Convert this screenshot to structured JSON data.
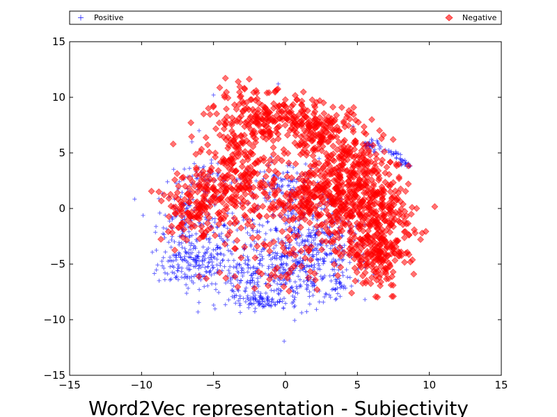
{
  "chart_data": {
    "type": "scatter",
    "title": "Word2Vec representation - Subjectivity",
    "xlabel": "",
    "ylabel": "",
    "xlim": [
      -15,
      15
    ],
    "ylim": [
      -15,
      15
    ],
    "x_ticks": [
      -15,
      -10,
      -5,
      0,
      5,
      10,
      15
    ],
    "y_ticks": [
      -15,
      -10,
      -5,
      0,
      5,
      10,
      15
    ],
    "x_tick_labels": [
      "−15",
      "−10",
      "−5",
      "0",
      "5",
      "10",
      "15"
    ],
    "y_tick_labels": [
      "−15",
      "−10",
      "−5",
      "0",
      "5",
      "10",
      "15"
    ],
    "grid": false,
    "legend": {
      "placement": "top",
      "layout": "horizontal-expanded"
    },
    "series": [
      {
        "name": "Positive",
        "marker": "plus",
        "color": "#0000ff",
        "alpha": 0.6,
        "clusters": [
          {
            "cx": -6.5,
            "cy": -5.0,
            "sx": 1.2,
            "sy": 1.0,
            "n": 160
          },
          {
            "cx": -7.0,
            "cy": -1.0,
            "sx": 1.0,
            "sy": 1.6,
            "n": 110
          },
          {
            "cx": -5.5,
            "cy": 2.5,
            "sx": 1.3,
            "sy": 0.8,
            "n": 60
          },
          {
            "cx": -2.0,
            "cy": -6.0,
            "sx": 1.8,
            "sy": 1.3,
            "n": 170
          },
          {
            "cx": 1.0,
            "cy": -5.5,
            "sx": 1.9,
            "sy": 1.6,
            "n": 230
          },
          {
            "cx": 1.5,
            "cy": -2.0,
            "sx": 1.7,
            "sy": 1.4,
            "n": 160
          },
          {
            "cx": 0.0,
            "cy": 2.0,
            "sx": 1.4,
            "sy": 1.2,
            "n": 120
          },
          {
            "cx": -1.5,
            "cy": -8.5,
            "sx": 1.2,
            "sy": 0.3,
            "n": 70
          },
          {
            "cx": 3.0,
            "cy": -4.0,
            "sx": 1.2,
            "sy": 1.8,
            "n": 80
          },
          {
            "cx": 3.5,
            "cy": -7.0,
            "sx": 0.2,
            "sy": 0.5,
            "n": 15
          },
          {
            "cx": -4.0,
            "cy": -2.5,
            "sx": 1.5,
            "sy": 1.5,
            "n": 80
          }
        ],
        "arc": {
          "x0": 5.5,
          "y0": 5.7,
          "x1": 8.8,
          "y1": 3.5,
          "n": 70,
          "jitter": 0.2
        },
        "outliers": [
          [
            -5.0,
            10.2
          ],
          [
            -0.5,
            11.2
          ],
          [
            -6.0,
            7.0
          ],
          [
            -6.5,
            6.0
          ],
          [
            4.7,
            7.4
          ],
          [
            -8.2,
            2.4
          ],
          [
            -1.0,
            -8.8
          ],
          [
            3.8,
            -7.9
          ]
        ]
      },
      {
        "name": "Negative",
        "marker": "diamond",
        "color": "#ff0000",
        "alpha": 0.55,
        "clusters": [
          {
            "cx": -1.5,
            "cy": 8.0,
            "sx": 1.8,
            "sy": 1.3,
            "n": 220
          },
          {
            "cx": 2.5,
            "cy": 7.0,
            "sx": 1.4,
            "sy": 1.2,
            "n": 150
          },
          {
            "cx": -3.2,
            "cy": 3.0,
            "sx": 1.6,
            "sy": 2.2,
            "n": 220
          },
          {
            "cx": -6.0,
            "cy": 0.5,
            "sx": 1.1,
            "sy": 1.2,
            "n": 110
          },
          {
            "cx": 2.5,
            "cy": 1.5,
            "sx": 1.3,
            "sy": 1.8,
            "n": 150
          },
          {
            "cx": 5.0,
            "cy": 0.0,
            "sx": 1.5,
            "sy": 2.0,
            "n": 220
          },
          {
            "cx": 6.8,
            "cy": -1.5,
            "sx": 1.2,
            "sy": 2.2,
            "n": 200
          },
          {
            "cx": 4.8,
            "cy": 4.0,
            "sx": 1.4,
            "sy": 1.3,
            "n": 120
          },
          {
            "cx": 6.2,
            "cy": -4.5,
            "sx": 1.0,
            "sy": 1.2,
            "n": 100
          },
          {
            "cx": 0.5,
            "cy": 0.5,
            "sx": 1.3,
            "sy": 0.9,
            "n": 70
          },
          {
            "cx": -0.5,
            "cy": -4.5,
            "sx": 2.0,
            "sy": 1.7,
            "n": 60
          },
          {
            "cx": -5.5,
            "cy": -2.0,
            "sx": 1.5,
            "sy": 1.5,
            "n": 40
          }
        ],
        "arc": null,
        "outliers": [
          [
            -7.8,
            5.8
          ],
          [
            6.0,
            8.0
          ],
          [
            5.6,
            6.7
          ],
          [
            7.4,
            -7.9
          ],
          [
            7.5,
            -7.9
          ],
          [
            2.2,
            -7.3
          ],
          [
            4.6,
            -7.6
          ],
          [
            -8.8,
            1.5
          ],
          [
            2.0,
            9.3
          ],
          [
            -5.5,
            -6.3
          ]
        ]
      }
    ]
  }
}
